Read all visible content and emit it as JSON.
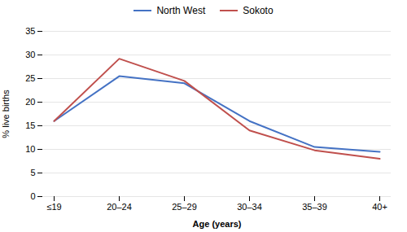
{
  "chart_data": {
    "type": "line",
    "xlabel": "Age (years)",
    "ylabel": "% live births",
    "categories": [
      "≤19",
      "20–24",
      "25–29",
      "30–34",
      "35–39",
      "40+"
    ],
    "series": [
      {
        "name": "North West",
        "color": "#4472C4",
        "values": [
          16.0,
          25.5,
          24.0,
          16.0,
          10.5,
          9.5
        ]
      },
      {
        "name": "Sokoto",
        "color": "#C0504D",
        "values": [
          16.0,
          29.2,
          24.5,
          14.0,
          9.8,
          8.0
        ]
      }
    ],
    "ylim": [
      0,
      35
    ],
    "yticks": [
      0,
      5,
      10,
      15,
      20,
      25,
      30,
      35
    ],
    "grid": true,
    "legend": "top"
  }
}
